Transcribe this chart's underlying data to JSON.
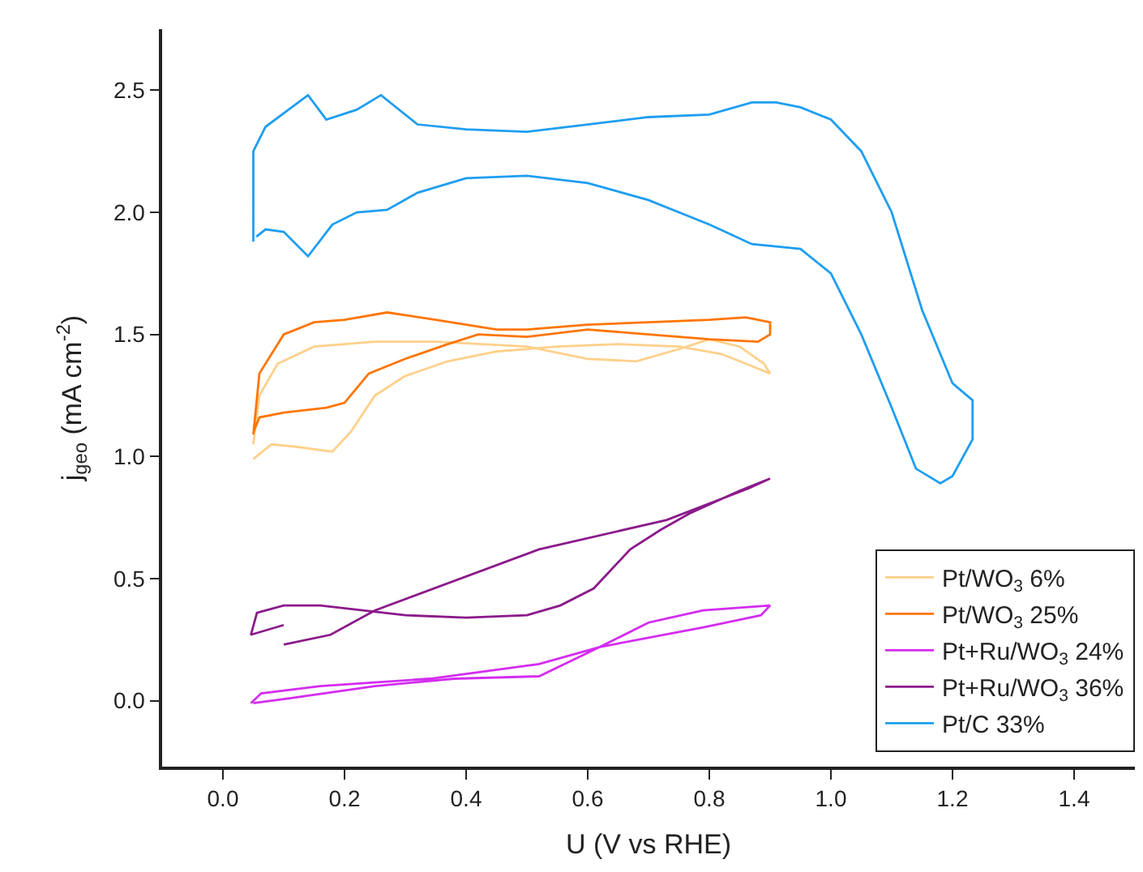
{
  "chart_data": {
    "type": "line",
    "xlabel": "U (V vs RHE)",
    "ylabel": "j$_{geo}$ (mA cm$^{-2}$)",
    "xlim": [
      -0.1,
      1.5
    ],
    "ylim": [
      -0.27,
      2.75
    ],
    "xticks": [
      {
        "value": 0,
        "label": "0.0"
      },
      0.2,
      0.4,
      0.6,
      0.8,
      {
        "value": 1,
        "label": "1.0"
      },
      1.2,
      1.4
    ],
    "yticks": [
      {
        "value": 0,
        "label": "0.0"
      },
      0.5,
      {
        "value": 1,
        "label": "1.0"
      },
      1.5,
      {
        "value": 2,
        "label": "2.0"
      },
      2.5
    ],
    "legend": "bottom right",
    "marker": "none",
    "line_style": "solid",
    "series": [
      {
        "name": "Pt/WO$_{3}$ 6%",
        "color": "#ffd08a",
        "x": [
          0.05,
          0.08,
          0.12,
          0.18,
          0.21,
          0.25,
          0.3,
          0.37,
          0.45,
          0.55,
          0.65,
          0.75,
          0.82,
          0.87,
          0.9,
          0.89,
          0.85,
          0.8,
          0.75,
          0.68,
          0.6,
          0.5,
          0.35,
          0.25,
          0.15,
          0.09,
          0.06,
          0.05
        ],
        "values": [
          0.99,
          1.05,
          1.04,
          1.02,
          1.1,
          1.25,
          1.33,
          1.39,
          1.43,
          1.45,
          1.46,
          1.45,
          1.42,
          1.37,
          1.34,
          1.38,
          1.45,
          1.48,
          1.44,
          1.39,
          1.4,
          1.45,
          1.47,
          1.47,
          1.45,
          1.38,
          1.25,
          1.05
        ]
      },
      {
        "name": "Pt/WO$_{3}$ 25%",
        "color": "#ff7500",
        "x": [
          0.05,
          0.06,
          0.1,
          0.15,
          0.2,
          0.27,
          0.35,
          0.45,
          0.5,
          0.6,
          0.7,
          0.8,
          0.86,
          0.9,
          0.9,
          0.88,
          0.8,
          0.7,
          0.6,
          0.5,
          0.42,
          0.37,
          0.3,
          0.24,
          0.2,
          0.17,
          0.1,
          0.06,
          0.05
        ],
        "values": [
          1.09,
          1.34,
          1.5,
          1.55,
          1.56,
          1.59,
          1.56,
          1.52,
          1.52,
          1.54,
          1.55,
          1.56,
          1.57,
          1.55,
          1.5,
          1.47,
          1.48,
          1.5,
          1.52,
          1.49,
          1.5,
          1.46,
          1.4,
          1.34,
          1.22,
          1.2,
          1.18,
          1.16,
          1.1
        ]
      },
      {
        "name": "Pt+Ru/WO$_{3}$ 24%",
        "color": "#d42cf0",
        "x": [
          0.046,
          0.063,
          0.16,
          0.34,
          0.52,
          0.62,
          0.7,
          0.79,
          0.9,
          0.885,
          0.79,
          0.62,
          0.52,
          0.38,
          0.25,
          0.11,
          0.05
        ],
        "values": [
          -0.01,
          0.03,
          0.06,
          0.09,
          0.15,
          0.22,
          0.32,
          0.37,
          0.39,
          0.35,
          0.3,
          0.22,
          0.1,
          0.09,
          0.06,
          0.01,
          -0.01
        ]
      },
      {
        "name": "Pt+Ru/WO$_{3}$ 36%",
        "color": "#8b1a8b",
        "x": [
          0.1,
          0.177,
          0.25,
          0.52,
          0.73,
          0.865,
          0.9,
          0.85,
          0.77,
          0.72,
          0.67,
          0.61,
          0.555,
          0.5,
          0.4,
          0.3,
          0.16,
          0.1,
          0.056,
          0.046,
          0.1
        ],
        "values": [
          0.23,
          0.27,
          0.37,
          0.62,
          0.74,
          0.87,
          0.91,
          0.86,
          0.77,
          0.7,
          0.62,
          0.46,
          0.39,
          0.35,
          0.34,
          0.35,
          0.39,
          0.39,
          0.36,
          0.27,
          0.31
        ]
      },
      {
        "name": "Pt/C 33%",
        "color": "#1f9ef0",
        "x": [
          0.05,
          0.05,
          0.07,
          0.14,
          0.17,
          0.22,
          0.26,
          0.32,
          0.4,
          0.5,
          0.6,
          0.7,
          0.8,
          0.87,
          0.91,
          0.95,
          1.0,
          1.05,
          1.1,
          1.15,
          1.2,
          1.233,
          1.233,
          1.2,
          1.18,
          1.14,
          1.1,
          1.05,
          1.0,
          0.95,
          0.87,
          0.8,
          0.7,
          0.6,
          0.5,
          0.4,
          0.32,
          0.27,
          0.22,
          0.18,
          0.14,
          0.1,
          0.07,
          0.055
        ],
        "values": [
          1.88,
          2.25,
          2.35,
          2.48,
          2.38,
          2.42,
          2.48,
          2.36,
          2.34,
          2.33,
          2.36,
          2.39,
          2.4,
          2.45,
          2.45,
          2.43,
          2.38,
          2.25,
          2.0,
          1.6,
          1.3,
          1.23,
          1.07,
          0.92,
          0.89,
          0.95,
          1.2,
          1.5,
          1.75,
          1.85,
          1.87,
          1.95,
          2.05,
          2.12,
          2.15,
          2.14,
          2.08,
          2.01,
          2.0,
          1.95,
          1.82,
          1.92,
          1.93,
          1.9
        ]
      }
    ]
  }
}
